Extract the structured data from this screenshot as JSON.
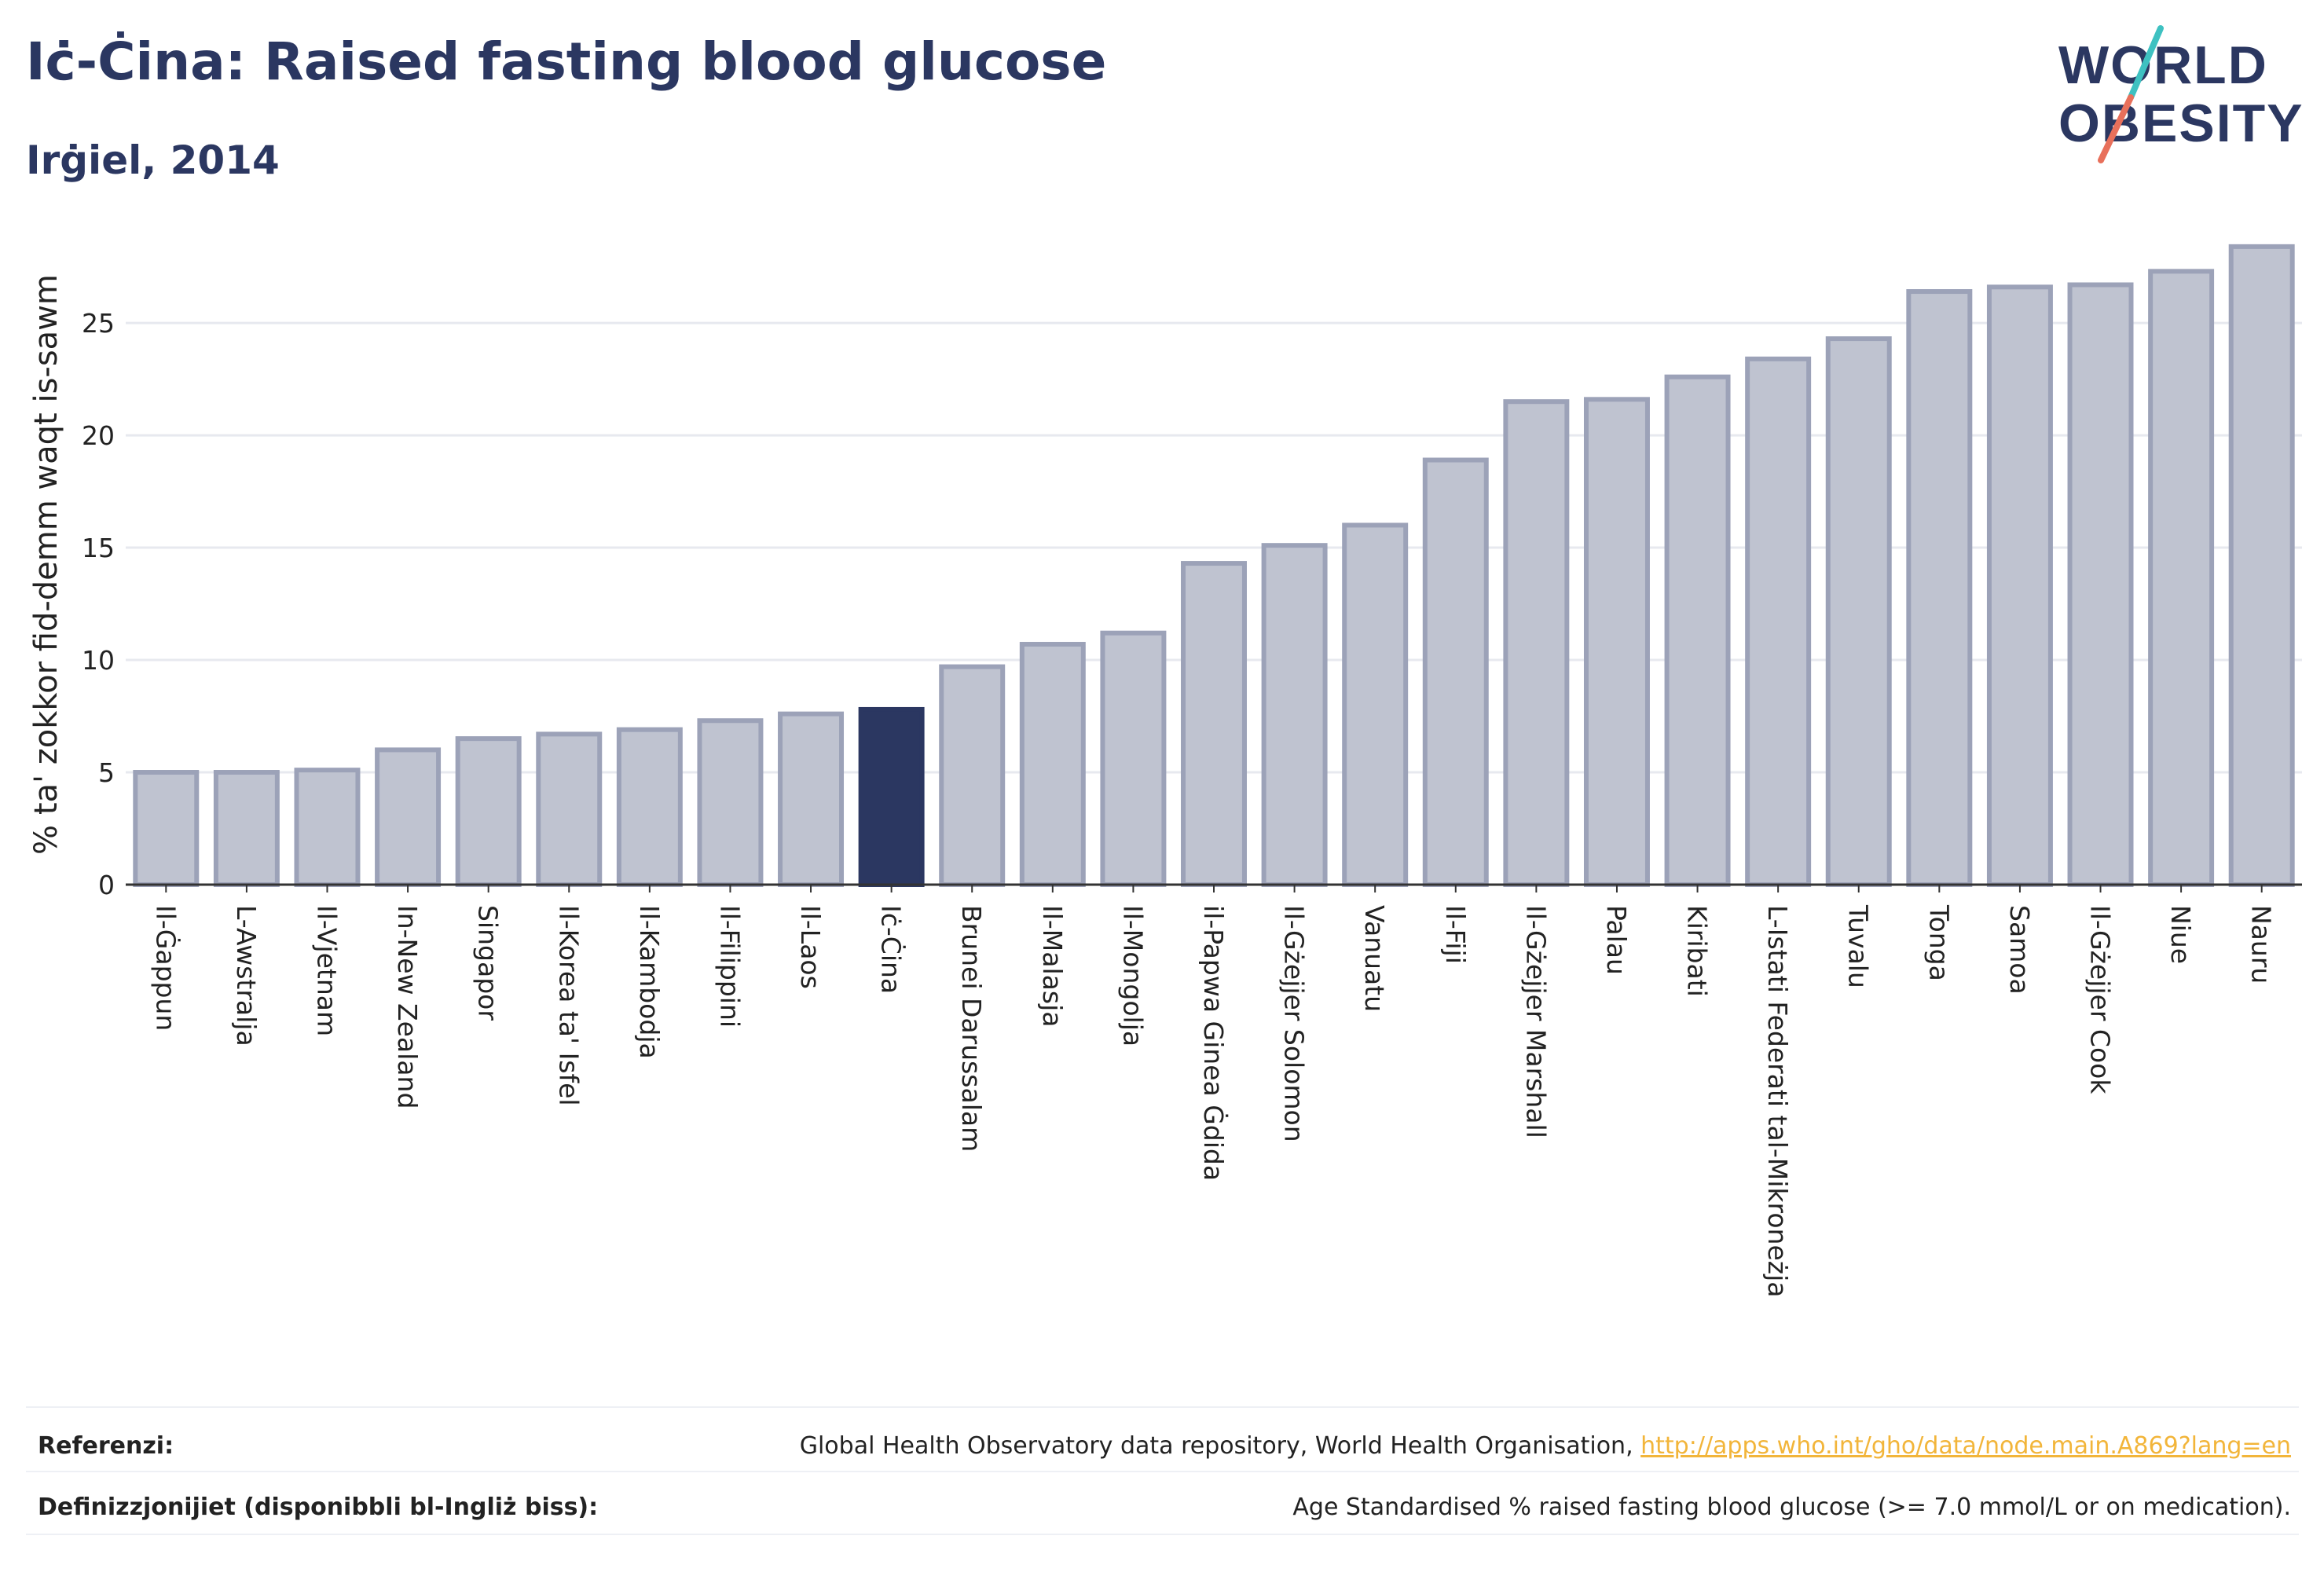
{
  "header": {
    "title": "Iċ-Ċina: Raised fasting blood glucose",
    "subtitle": "Irġiel, 2014"
  },
  "logo": {
    "line1": "WORLD",
    "line2": "OBESITY",
    "colors": {
      "text": "#2b3761",
      "slash_top": "#3ec1c1",
      "slash_bottom": "#e8705b"
    }
  },
  "colors": {
    "bar_fill": "#bfc3d0",
    "bar_stroke": "#9ca2b8",
    "highlight_fill": "#2b3761",
    "grid": "#e7e9ef",
    "axis": "#333333"
  },
  "chart_data": {
    "type": "bar",
    "title": "Iċ-Ċina: Raised fasting blood glucose",
    "subtitle": "Irġiel, 2014",
    "xlabel": "",
    "ylabel": "% ta' zokkor fid-demm waqt is-sawm",
    "ylim": [
      0,
      28.5
    ],
    "yticks": [
      0,
      5,
      10,
      15,
      20,
      25
    ],
    "grid": true,
    "highlight": "Iċ-Ċina",
    "categories": [
      "Il-Ġappun",
      "L-Awstralja",
      "Il-Vjetnam",
      "In-New Zealand",
      "Singapor",
      "Il-Korea ta' Isfel",
      "Il-Kambodja",
      "Il-Filippini",
      "Il-Laos",
      "Iċ-Ċina",
      "Brunei Darussalam",
      "Il-Malasja",
      "Il-Mongolja",
      "il-Papwa Ginea Ġdida",
      "Il-Gżejjer Solomon",
      "Vanuatu",
      "Il-Fiji",
      "Il-Gżejjer Marshall",
      "Palau",
      "Kiribati",
      "L-Istati Federati tal-Mikroneżja",
      "Tuvalu",
      "Tonga",
      "Samoa",
      "Il-Gżejjer Cook",
      "Niue",
      "Nauru"
    ],
    "values": [
      5.0,
      5.0,
      5.1,
      6.0,
      6.5,
      6.7,
      6.9,
      7.3,
      7.6,
      7.8,
      9.7,
      10.7,
      11.2,
      14.3,
      15.1,
      16.0,
      18.9,
      21.5,
      21.6,
      22.6,
      23.4,
      24.3,
      26.4,
      26.6,
      26.7,
      27.3,
      28.4
    ]
  },
  "footer": {
    "references_label": "Referenzi:",
    "references_text": "Global Health Observatory data repository, World Health Organisation, ",
    "references_link": "http://apps.who.int/gho/data/node.main.A869?lang=en",
    "definitions_label": "Definizzjonijiet (disponibbli bl-Ingliż biss):",
    "definitions_text": "Age Standardised % raised fasting blood glucose (>= 7.0 mmol/L or on medication)."
  }
}
